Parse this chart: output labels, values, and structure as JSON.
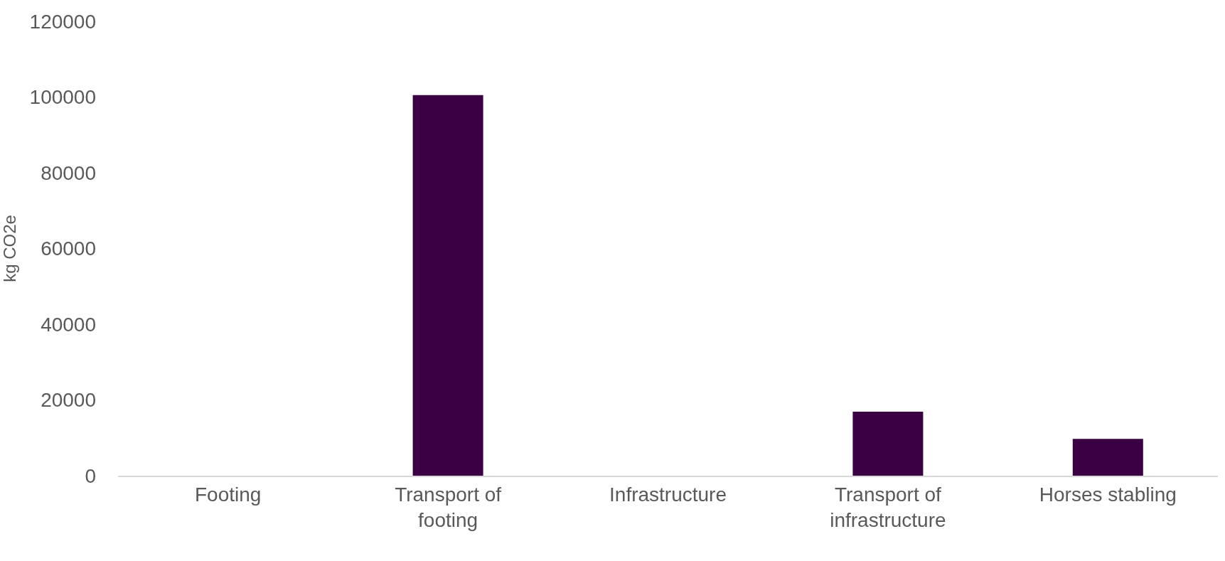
{
  "chart_data": {
    "type": "bar",
    "ylabel": "kg CO2e",
    "categories": [
      "Footing",
      "Transport of footing",
      "Infrastructure",
      "Transport of infrastructure",
      "Horses stabling"
    ],
    "values": [
      0,
      100500,
      0,
      16900,
      9700
    ],
    "color": "#3a0043",
    "ylim": [
      0,
      120000
    ],
    "yticks": [
      0,
      20000,
      40000,
      60000,
      80000,
      100000,
      120000
    ]
  }
}
